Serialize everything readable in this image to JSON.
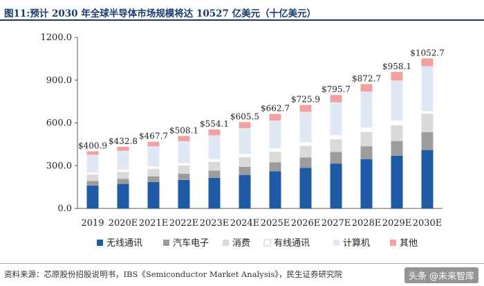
{
  "header": {
    "title": "图11:预计 2030 年全球半导体市场规模将达 10527 亿美元（十亿美元）"
  },
  "footer": {
    "source": "资料来源：芯原股份招股说明书，IBS《Semiconductor Market Analysis》，民生证券研究院",
    "watermark": "头条 @未来智库"
  },
  "chart_data": {
    "type": "bar",
    "stacked": true,
    "title": "预计 2030 年全球半导体市场规模将达 10527 亿美元（十亿美元）",
    "xlabel": "",
    "ylabel": "",
    "ylim": [
      0,
      1200
    ],
    "yticks": [
      "0.0",
      "300.0",
      "600.0",
      "900.0",
      "1200.0"
    ],
    "categories": [
      "2019",
      "2020E",
      "2021E",
      "2022E",
      "2023E",
      "2024E",
      "2025E",
      "2026E",
      "2027E",
      "2028E",
      "2029E",
      "2030E"
    ],
    "totals": [
      "$400.9",
      "$432.8",
      "$467.7",
      "$508.1",
      "$554.1",
      "$605.5",
      "$662.7",
      "$725.9",
      "$795.7",
      "$872.7",
      "$958.1",
      "$1052.7"
    ],
    "legend_position": "bottom",
    "series": [
      {
        "name": "无线通讯",
        "color": "#1f5aa6",
        "values": [
          160,
          172,
          185,
          200,
          215,
          235,
          260,
          285,
          315,
          345,
          370,
          410
        ]
      },
      {
        "name": "汽车电子",
        "color": "#9c9c9c",
        "values": [
          33,
          36,
          40,
          44,
          50,
          57,
          63,
          72,
          81,
          91,
          103,
          125
        ]
      },
      {
        "name": "消费",
        "color": "#d9d9d9",
        "values": [
          45,
          48,
          52,
          57,
          62,
          68,
          75,
          82,
          90,
          100,
          110,
          130
        ]
      },
      {
        "name": "有线通讯",
        "color": "#ffffff",
        "values": [
          14,
          16,
          17,
          18,
          20,
          22,
          24,
          26,
          29,
          32,
          35,
          18
        ]
      },
      {
        "name": "计算机",
        "color": "#dfe8f4",
        "values": [
          125,
          133,
          142,
          153,
          166,
          182,
          195,
          213,
          230,
          252,
          280,
          315
        ]
      },
      {
        "name": "其他",
        "color": "#f2a0a0",
        "values": [
          23.9,
          27.8,
          31.7,
          36.1,
          41.1,
          41.5,
          45.7,
          47.9,
          50.7,
          52.7,
          60.1,
          54.7
        ]
      }
    ]
  }
}
